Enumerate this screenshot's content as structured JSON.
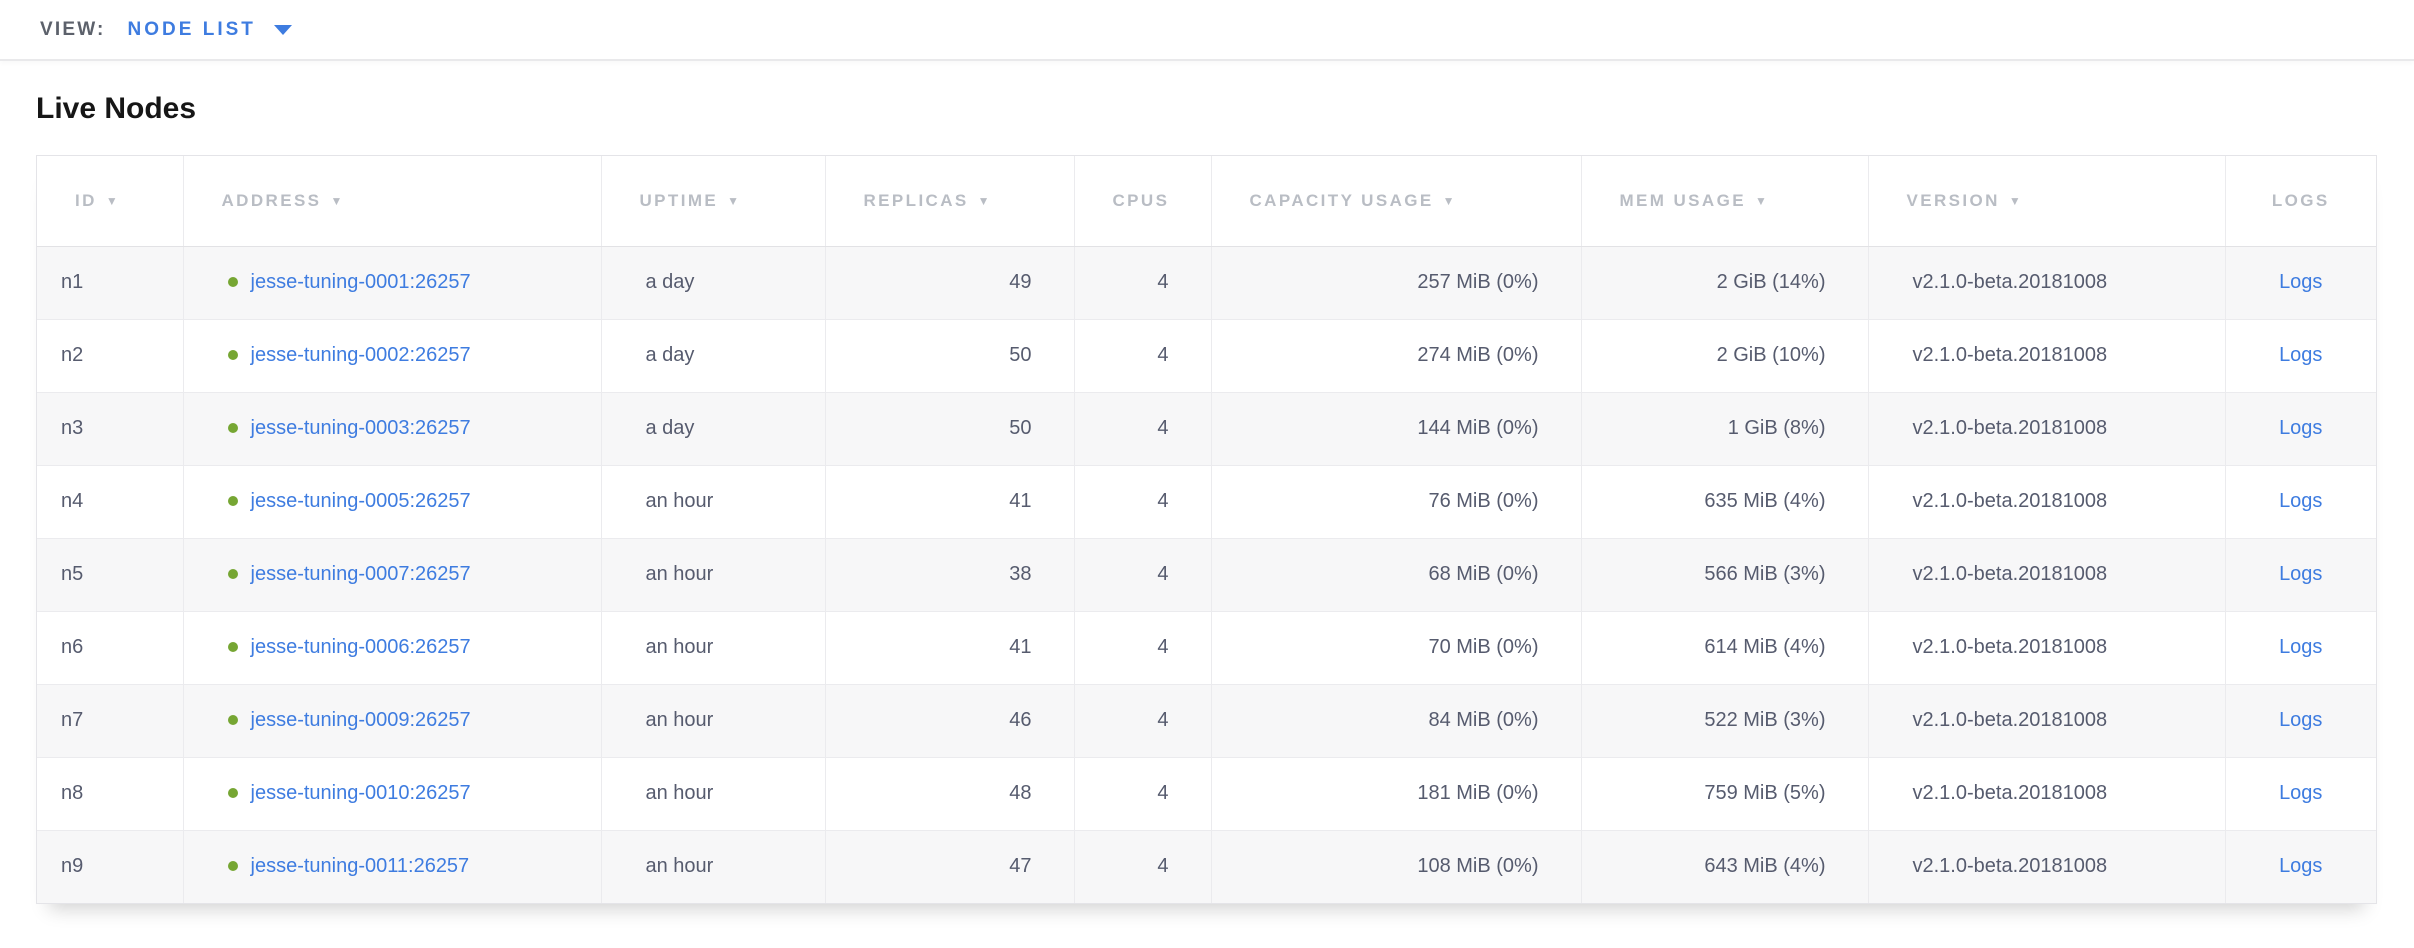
{
  "view_bar": {
    "label": "VIEW:",
    "selected_view": "NODE LIST",
    "dropdown_icon": "caret-down-icon"
  },
  "page_title": "Live Nodes",
  "table": {
    "columns": [
      {
        "key": "id",
        "label": "ID",
        "sort_indicator": "▼"
      },
      {
        "key": "address",
        "label": "ADDRESS",
        "sort_indicator": "▼"
      },
      {
        "key": "uptime",
        "label": "UPTIME",
        "sort_indicator": "▼"
      },
      {
        "key": "replicas",
        "label": "REPLICAS",
        "sort_indicator": "▼"
      },
      {
        "key": "cpus",
        "label": "CPUS",
        "sort_indicator": ""
      },
      {
        "key": "capacity_usage",
        "label": "CAPACITY USAGE",
        "sort_indicator": "▼"
      },
      {
        "key": "mem_usage",
        "label": "MEM USAGE",
        "sort_indicator": "▼"
      },
      {
        "key": "version",
        "label": "VERSION",
        "sort_indicator": "▼"
      },
      {
        "key": "logs",
        "label": "LOGS",
        "sort_indicator": ""
      }
    ],
    "rows": [
      {
        "id": "n1",
        "status_icon": "live-green-dot",
        "address": "jesse-tuning-0001:26257",
        "uptime": "a day",
        "replicas": "49",
        "cpus": "4",
        "capacity_usage": "257 MiB (0%)",
        "mem_usage": "2 GiB (14%)",
        "version": "v2.1.0-beta.20181008",
        "logs_label": "Logs"
      },
      {
        "id": "n2",
        "status_icon": "live-green-dot",
        "address": "jesse-tuning-0002:26257",
        "uptime": "a day",
        "replicas": "50",
        "cpus": "4",
        "capacity_usage": "274 MiB (0%)",
        "mem_usage": "2 GiB (10%)",
        "version": "v2.1.0-beta.20181008",
        "logs_label": "Logs"
      },
      {
        "id": "n3",
        "status_icon": "live-green-dot",
        "address": "jesse-tuning-0003:26257",
        "uptime": "a day",
        "replicas": "50",
        "cpus": "4",
        "capacity_usage": "144 MiB (0%)",
        "mem_usage": "1 GiB (8%)",
        "version": "v2.1.0-beta.20181008",
        "logs_label": "Logs"
      },
      {
        "id": "n4",
        "status_icon": "live-green-dot",
        "address": "jesse-tuning-0005:26257",
        "uptime": "an hour",
        "replicas": "41",
        "cpus": "4",
        "capacity_usage": "76 MiB (0%)",
        "mem_usage": "635 MiB (4%)",
        "version": "v2.1.0-beta.20181008",
        "logs_label": "Logs"
      },
      {
        "id": "n5",
        "status_icon": "live-green-dot",
        "address": "jesse-tuning-0007:26257",
        "uptime": "an hour",
        "replicas": "38",
        "cpus": "4",
        "capacity_usage": "68 MiB (0%)",
        "mem_usage": "566 MiB (3%)",
        "version": "v2.1.0-beta.20181008",
        "logs_label": "Logs"
      },
      {
        "id": "n6",
        "status_icon": "live-green-dot",
        "address": "jesse-tuning-0006:26257",
        "uptime": "an hour",
        "replicas": "41",
        "cpus": "4",
        "capacity_usage": "70 MiB (0%)",
        "mem_usage": "614 MiB (4%)",
        "version": "v2.1.0-beta.20181008",
        "logs_label": "Logs"
      },
      {
        "id": "n7",
        "status_icon": "live-green-dot",
        "address": "jesse-tuning-0009:26257",
        "uptime": "an hour",
        "replicas": "46",
        "cpus": "4",
        "capacity_usage": "84 MiB (0%)",
        "mem_usage": "522 MiB (3%)",
        "version": "v2.1.0-beta.20181008",
        "logs_label": "Logs"
      },
      {
        "id": "n8",
        "status_icon": "live-green-dot",
        "address": "jesse-tuning-0010:26257",
        "uptime": "an hour",
        "replicas": "48",
        "cpus": "4",
        "capacity_usage": "181 MiB (0%)",
        "mem_usage": "759 MiB (5%)",
        "version": "v2.1.0-beta.20181008",
        "logs_label": "Logs"
      },
      {
        "id": "n9",
        "status_icon": "live-green-dot",
        "address": "jesse-tuning-0011:26257",
        "uptime": "an hour",
        "replicas": "47",
        "cpus": "4",
        "capacity_usage": "108 MiB (0%)",
        "mem_usage": "643 MiB (4%)",
        "version": "v2.1.0-beta.20181008",
        "logs_label": "Logs"
      }
    ]
  },
  "colors": {
    "link_blue": "#3e7ce0",
    "live_dot_green": "#76a633",
    "header_text_gray": "#b9bdc4",
    "body_text": "#565b6e",
    "row_stripe": "#f7f7f8"
  }
}
